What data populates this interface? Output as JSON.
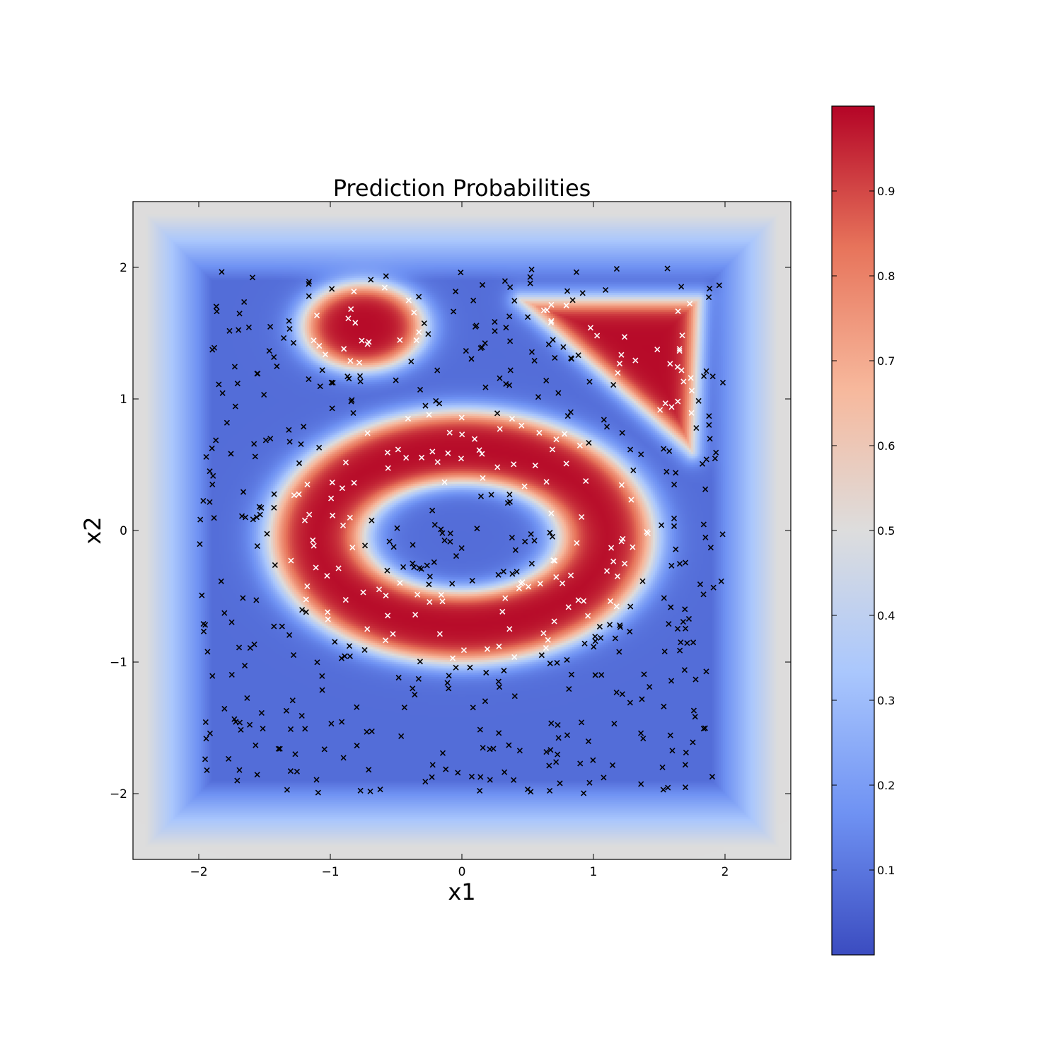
{
  "chart_data": {
    "type": "heatmap",
    "title": "Prediction Probabilities",
    "xlabel": "x1",
    "ylabel": "x2",
    "xlim": [
      -2.5,
      2.5
    ],
    "ylim": [
      -2.5,
      2.5
    ],
    "x_ticks": [
      -2,
      -1,
      0,
      1,
      2
    ],
    "y_ticks": [
      -2,
      -1,
      0,
      1,
      2
    ],
    "x_tick_labels": [
      "−2",
      "−1",
      "0",
      "1",
      "2"
    ],
    "y_tick_labels": [
      "−2",
      "−1",
      "0",
      "1",
      "2"
    ],
    "grid": false,
    "colormap": "coolwarm",
    "colormap_stops": [
      "#3b4cc0",
      "#6f92f3",
      "#aac7fd",
      "#dddddd",
      "#f7b89c",
      "#e7745b",
      "#b40426"
    ],
    "colorbar": {
      "range": [
        0.0,
        1.0
      ],
      "ticks": [
        0.1,
        0.2,
        0.3,
        0.4,
        0.5,
        0.6,
        0.7,
        0.8,
        0.9
      ],
      "tick_labels": [
        "0.1",
        "0.2",
        "0.3",
        "0.4",
        "0.5",
        "0.6",
        "0.7",
        "0.8",
        "0.9"
      ],
      "placement": "right"
    },
    "regions_high_probability": [
      {
        "shape": "ellipse",
        "center": [
          -0.75,
          1.55
        ],
        "radii": [
          0.45,
          0.32
        ]
      },
      {
        "shape": "ring",
        "center": [
          0.0,
          -0.05
        ],
        "inner_radii": [
          0.75,
          0.42
        ],
        "outer_radii": [
          1.45,
          0.95
        ]
      },
      {
        "shape": "triangle",
        "vertices": [
          [
            0.45,
            1.75
          ],
          [
            1.8,
            1.75
          ],
          [
            1.75,
            0.6
          ]
        ]
      }
    ],
    "marker_colors": {
      "positive": "#ffffff",
      "negative": "#000000"
    },
    "points": {
      "marker": "x",
      "count_approx": 600,
      "x_range": [
        -2.0,
        2.0
      ],
      "y_range": [
        -2.0,
        2.0
      ]
    }
  }
}
